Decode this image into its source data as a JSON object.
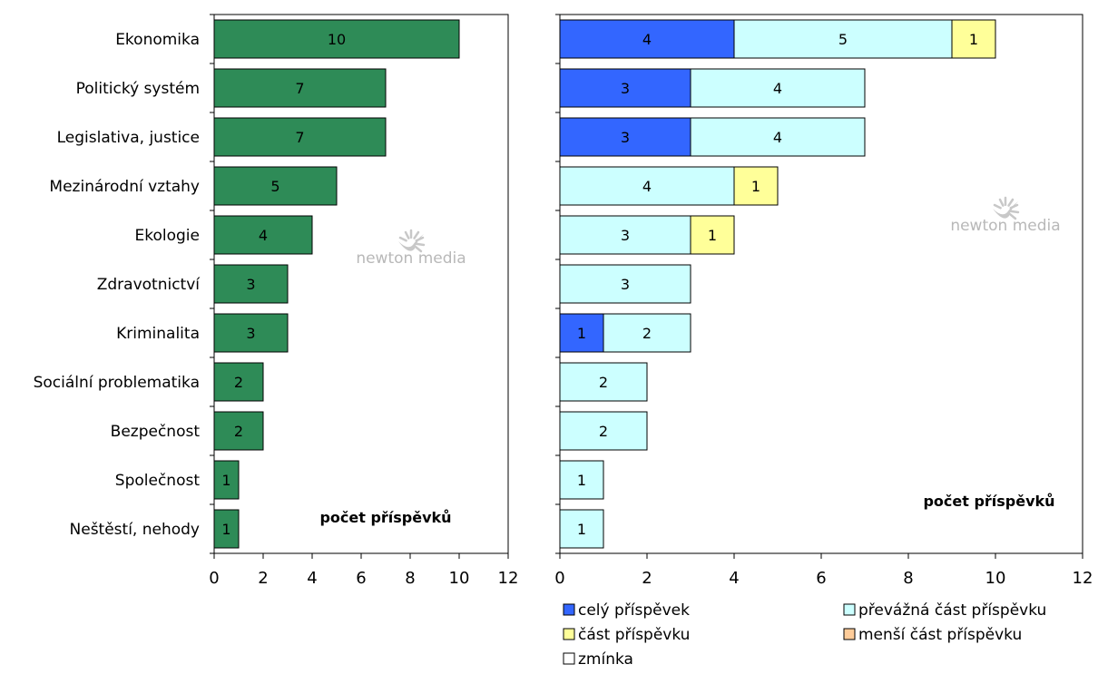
{
  "chart_data": [
    {
      "type": "bar",
      "orientation": "horizontal",
      "categories": [
        "Ekonomika",
        "Politický systém",
        "Legislativa, justice",
        "Mezinárodní vztahy",
        "Ekologie",
        "Zdravotnictví",
        "Kriminalita",
        "Sociální problematika",
        "Bezpečnost",
        "Společnost",
        "Neštěstí, nehody"
      ],
      "values": [
        10,
        7,
        7,
        5,
        4,
        3,
        3,
        2,
        2,
        1,
        1
      ],
      "xlim": [
        0,
        12
      ],
      "xticks": [
        0,
        2,
        4,
        6,
        8,
        10,
        12
      ],
      "annotation": "počet příspěvků",
      "bar_color": "#2e8b57",
      "grid": false
    },
    {
      "type": "bar",
      "orientation": "horizontal",
      "stacked": true,
      "categories": [
        "Ekonomika",
        "Politický systém",
        "Legislativa, justice",
        "Mezinárodní vztahy",
        "Ekologie",
        "Zdravotnictví",
        "Kriminalita",
        "Sociální problematika",
        "Bezpečnost",
        "Společnost",
        "Neštěstí, nehody"
      ],
      "series": [
        {
          "name": "celý příspěvek",
          "color": "#3366ff",
          "values": [
            4,
            3,
            3,
            0,
            0,
            0,
            1,
            0,
            0,
            0,
            0
          ]
        },
        {
          "name": "převážná část příspěvku",
          "color": "#ccffff",
          "values": [
            5,
            4,
            4,
            4,
            3,
            3,
            2,
            2,
            2,
            1,
            1
          ]
        },
        {
          "name": "část příspěvku",
          "color": "#ffff99",
          "values": [
            1,
            0,
            0,
            1,
            1,
            0,
            0,
            0,
            0,
            0,
            0
          ]
        },
        {
          "name": "menší část příspěvku",
          "color": "#ffcc99",
          "values": [
            0,
            0,
            0,
            0,
            0,
            0,
            0,
            0,
            0,
            0,
            0
          ]
        },
        {
          "name": "zmínka",
          "color": "#ffffff",
          "values": [
            0,
            0,
            0,
            0,
            0,
            0,
            0,
            0,
            0,
            0,
            0
          ]
        }
      ],
      "xlim": [
        0,
        12
      ],
      "xticks": [
        0,
        2,
        4,
        6,
        8,
        10,
        12
      ],
      "annotation": "počet příspěvků",
      "legend_position": "bottom",
      "grid": false
    }
  ],
  "watermark": {
    "text": "newton media",
    "icon": "bird-logo-icon"
  }
}
